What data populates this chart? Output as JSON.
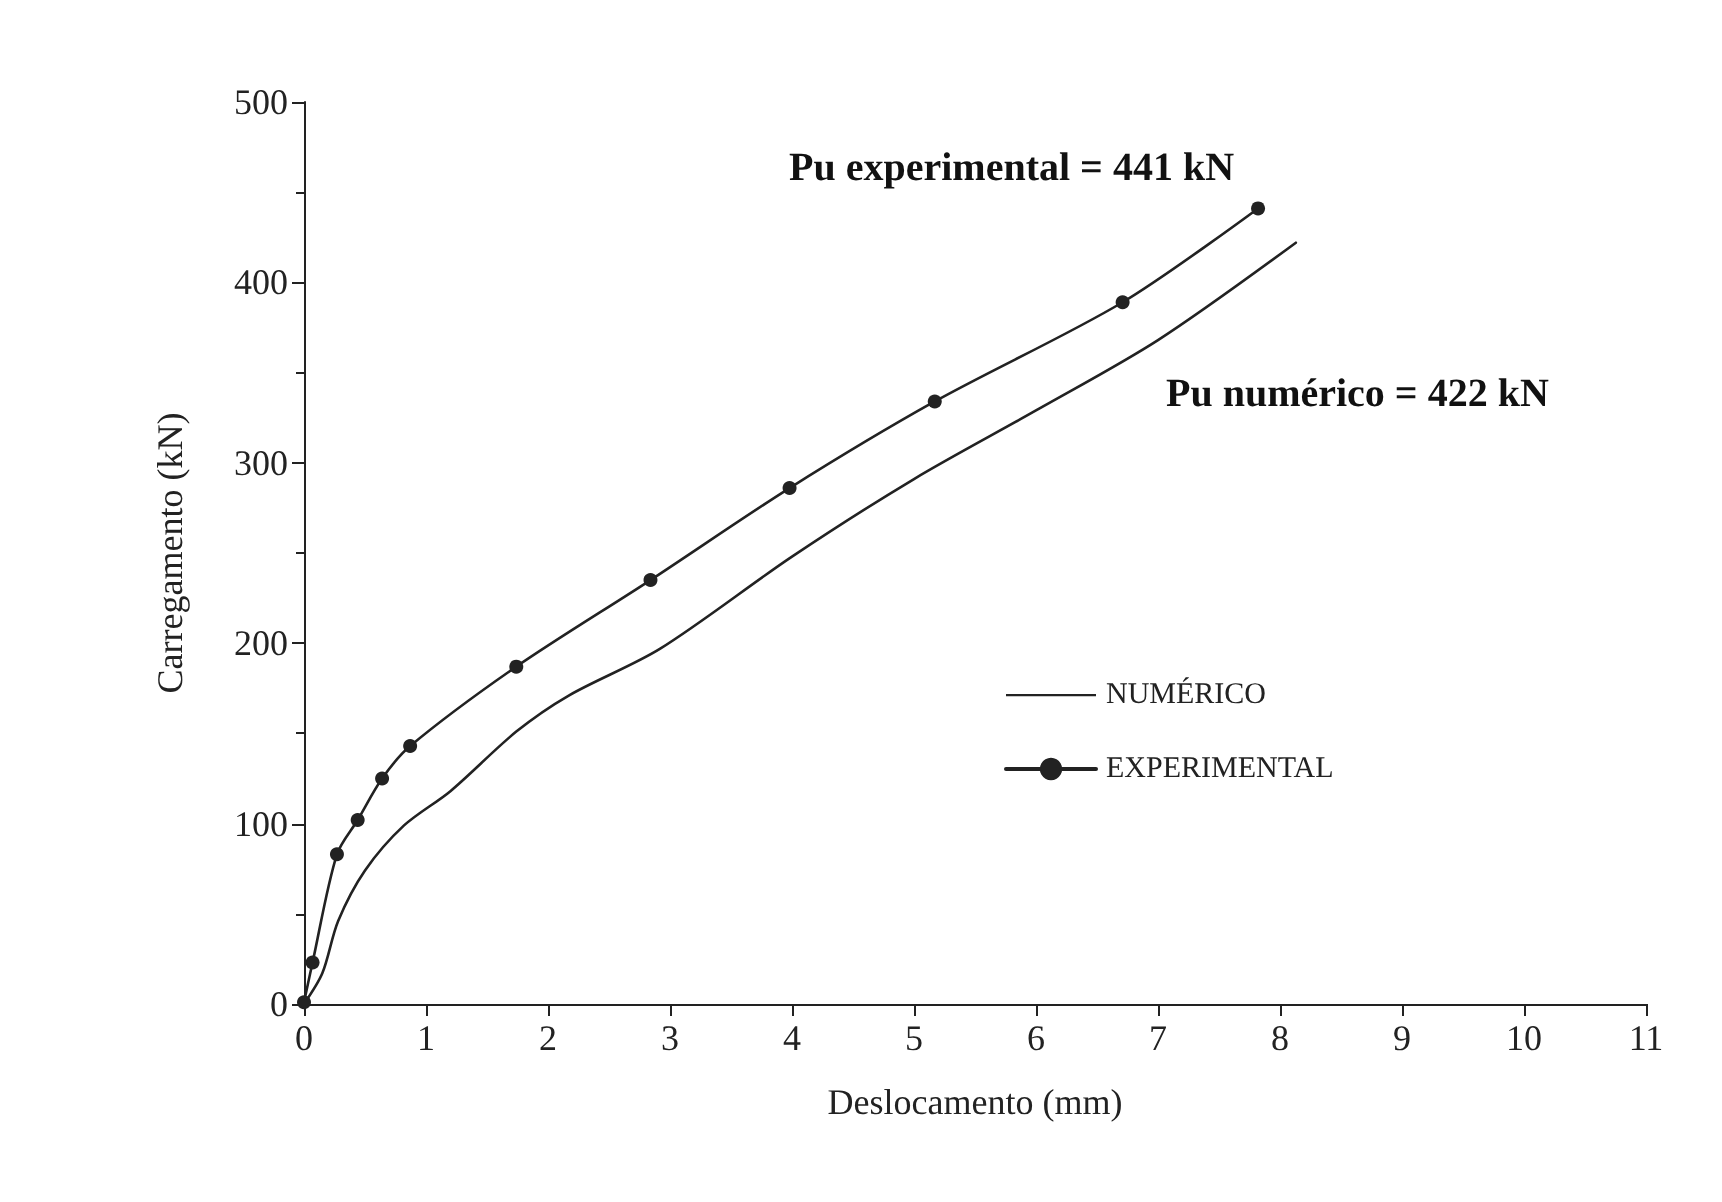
{
  "chart_data": {
    "type": "line",
    "xlabel": "Deslocamento (mm)",
    "ylabel": "Carregamento (kN)",
    "xlim": [
      0,
      11
    ],
    "xticks": [
      0,
      1,
      2,
      3,
      4,
      5,
      6,
      7,
      8,
      9,
      10,
      11
    ],
    "ylim": [
      0,
      500
    ],
    "yticks": [
      0,
      100,
      200,
      300,
      400,
      500
    ],
    "grid": false,
    "legend": "right",
    "line_style": "solid",
    "series": [
      {
        "name": "NUMÉRICO",
        "color": "#222222",
        "marker": "none",
        "x": [
          0,
          0.15,
          0.28,
          0.5,
          0.82,
          1.2,
          1.74,
          2.17,
          2.92,
          4,
          5,
          6,
          7,
          8.13
        ],
        "values": [
          0,
          17,
          46,
          74,
          99,
          118,
          151,
          171,
          197,
          248,
          291,
          329,
          368,
          422
        ]
      },
      {
        "name": "EXPERIMENTAL",
        "color": "#222222",
        "marker": "circle",
        "x": [
          0,
          0.07,
          0.27,
          0.44,
          0.64,
          0.87,
          1.74,
          2.84,
          3.98,
          5.17,
          6.71,
          7.82
        ],
        "values": [
          1,
          23,
          83,
          102,
          125,
          143,
          187,
          235,
          286,
          334,
          389,
          441
        ]
      }
    ],
    "annotations": [
      {
        "text": "Pu experimental = 441 kN",
        "x": 7.82,
        "y": 441
      },
      "Pu numérico = 422 kN"
    ]
  }
}
